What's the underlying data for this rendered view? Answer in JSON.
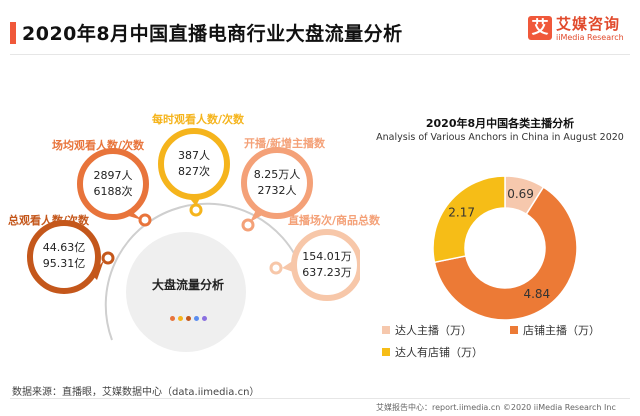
{
  "header": {
    "title": "2020年8月中国直播电商行业大盘流量分析",
    "logo_glyph": "艾",
    "logo_cn": "艾媒咨询",
    "logo_en": "iiMedia Research"
  },
  "metrics": {
    "center_title": "大盘流量分析",
    "items": [
      {
        "label": "总观看人数/次数",
        "line1": "44.63亿",
        "line2": "95.31亿",
        "color": "#c4571b"
      },
      {
        "label": "场均观看人数/次数",
        "line1": "2897人",
        "line2": "6188次",
        "color": "#e8743b"
      },
      {
        "label": "每时观看人数/次数",
        "line1": "387人",
        "line2": "827次",
        "color": "#f5b41c"
      },
      {
        "label": "开播/新增主播数",
        "line1": "8.25万人",
        "line2": "2732人",
        "color": "#f4a178"
      },
      {
        "label": "直播场次/商品总数",
        "line1": "154.01万",
        "line2": "637.23万",
        "color": "#f7c7a9"
      }
    ],
    "dot_colors": [
      "#e8743b",
      "#f5b41c",
      "#c4571b",
      "#5b8def",
      "#8a6fe0"
    ]
  },
  "chart_data": {
    "type": "pie",
    "title": "2020年8月中国各类主播分析",
    "subtitle": "Analysis of Various Anchors in China in August 2020",
    "categories": [
      "达人主播（万）",
      "店铺主播（万）",
      "达人有店铺（万）"
    ],
    "values": [
      0.69,
      4.84,
      2.17
    ],
    "colors": [
      "#f6c8ad",
      "#ec7a36",
      "#f6bd17"
    ],
    "donut": true,
    "legend_position": "bottom"
  },
  "footer": {
    "source": "数据来源：直播眼，艾媒数据中心（data.iimedia.cn）",
    "note": "艾媒报告中心：report.iimedia.cn   ©2020  iiMedia Research  Inc"
  }
}
